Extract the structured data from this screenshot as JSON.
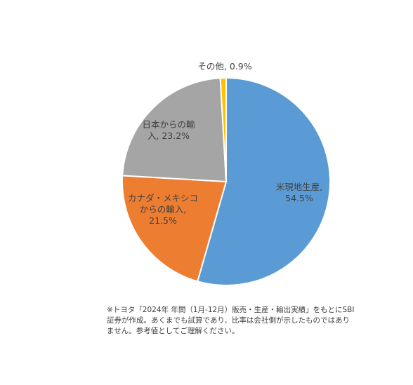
{
  "chart_data": {
    "type": "pie",
    "slices": [
      {
        "label": "米現地生産,",
        "label_lines": [
          "米現地生産,",
          "54.5%"
        ],
        "value": 54.5,
        "color": "#5B9BD5"
      },
      {
        "label": "カナダ・メキシコからの輸入,",
        "label_lines": [
          "カナダ・メキシコ",
          "からの輸入,",
          "21.5%"
        ],
        "value": 21.5,
        "color": "#ED7D31"
      },
      {
        "label": "日本からの輸入,",
        "label_lines": [
          "日本からの輸",
          "入, 23.2%"
        ],
        "value": 23.2,
        "color": "#A5A5A5"
      },
      {
        "label": "その他,",
        "label_lines": [
          "その他, 0.9%"
        ],
        "value": 0.9,
        "color": "#FFC000"
      }
    ]
  },
  "note": {
    "lines": [
      "※トヨタ「2024年 年間（1月-12月）販売・生産・輸出実績」をもとにSBI",
      "証券が作成。あくまでも試算であり、比率は会社側が示したものではあり",
      "ません。参考値としてご理解ください。"
    ]
  }
}
